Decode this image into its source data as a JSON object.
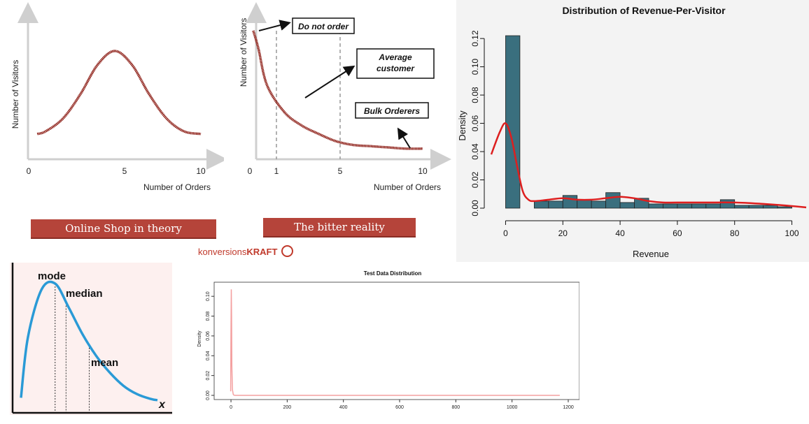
{
  "theory_chart": {
    "ylabel": "Number of Visitors",
    "xlabel": "Number of Orders",
    "ticks": [
      "0",
      "5",
      "10"
    ],
    "banner": "Online Shop in theory",
    "colors": {
      "curve": "#8b1a12",
      "banner": "#b5443a"
    }
  },
  "reality_chart": {
    "ylabel": "Number of Visitors",
    "xlabel": "Number of Orders",
    "ticks": [
      "0",
      "1",
      "5",
      "10"
    ],
    "annotations": {
      "do_not_order": "Do not order",
      "average_line1": "Average",
      "average_line2": "customer",
      "bulk": "Bulk Orderers"
    },
    "banner": "The bitter reality",
    "brand_light": "konversions",
    "brand_bold": "KRAFT"
  },
  "chart_data": [
    {
      "type": "line",
      "description_note": "",
      "x": [
        0.5,
        1,
        2,
        3,
        4,
        5,
        6,
        7,
        8,
        9,
        10
      ],
      "y": [
        0.1,
        0.13,
        0.27,
        0.53,
        0.85,
        1.0,
        0.85,
        0.53,
        0.27,
        0.13,
        0.1
      ],
      "xlabel": "Number of Orders",
      "ylabel": "Number of Visitors",
      "xticks": [
        0,
        5,
        10
      ]
    },
    {
      "type": "line",
      "x": [
        0.2,
        0.5,
        1,
        2,
        3,
        4,
        5,
        6,
        7,
        8,
        9,
        10
      ],
      "y": [
        1.0,
        0.85,
        0.55,
        0.33,
        0.22,
        0.15,
        0.09,
        0.06,
        0.05,
        0.04,
        0.03,
        0.03
      ],
      "xlabel": "Number of Orders",
      "ylabel": "Number of Visitors",
      "xticks": [
        0,
        1,
        5,
        10
      ],
      "reference_lines_x": [
        1,
        5
      ]
    },
    {
      "type": "bar",
      "title": "Distribution of Revenue-Per-Visitor",
      "xlabel": "Revenue",
      "ylabel": "Density",
      "xlim": [
        -5,
        105
      ],
      "ylim": [
        0,
        0.125
      ],
      "xticks": [
        0,
        20,
        40,
        60,
        80,
        100
      ],
      "yticks": [
        0.0,
        0.02,
        0.04,
        0.06,
        0.08,
        0.1,
        0.12
      ],
      "ytick_labels": [
        "0.00",
        "0.02",
        "0.04",
        "0.06",
        "0.08",
        "0.10",
        "0.12"
      ],
      "bin_edges": [
        0,
        5,
        10,
        15,
        20,
        25,
        30,
        35,
        40,
        45,
        50,
        55,
        60,
        65,
        70,
        75,
        80,
        85,
        90,
        95,
        100
      ],
      "values": [
        0.122,
        0.0,
        0.005,
        0.005,
        0.009,
        0.006,
        0.005,
        0.011,
        0.004,
        0.007,
        0.003,
        0.003,
        0.003,
        0.003,
        0.003,
        0.006,
        0.002,
        0.002,
        0.002,
        0.001
      ],
      "density_x": [
        -5,
        -2,
        0,
        2,
        4,
        6,
        8,
        10,
        15,
        20,
        25,
        30,
        35,
        40,
        45,
        50,
        55,
        60,
        70,
        80,
        90,
        100,
        105
      ],
      "density_y": [
        0.038,
        0.054,
        0.06,
        0.05,
        0.03,
        0.012,
        0.006,
        0.005,
        0.006,
        0.007,
        0.006,
        0.006,
        0.007,
        0.008,
        0.007,
        0.005,
        0.004,
        0.004,
        0.004,
        0.004,
        0.003,
        0.0015,
        0.0005
      ],
      "colors": {
        "bars": "#3a6f7e",
        "density": "#dd1f1f"
      }
    },
    {
      "type": "line",
      "labels": {
        "mode": "mode",
        "median": "median",
        "mean": "mean",
        "x": "x"
      },
      "x": [
        0,
        0.05,
        0.15,
        0.25,
        0.35,
        0.45,
        0.55,
        0.65,
        0.75,
        0.85,
        0.95,
        1.0
      ],
      "y": [
        0.05,
        0.55,
        0.95,
        1.0,
        0.8,
        0.58,
        0.4,
        0.26,
        0.15,
        0.08,
        0.04,
        0.03
      ],
      "markers_x": {
        "mode": 0.25,
        "median": 0.33,
        "mean": 0.5
      },
      "colors": {
        "curve": "#2a9ad6",
        "background": "#fdf0ef"
      }
    },
    {
      "type": "line",
      "title": "Test Data Distribution",
      "xlabel": "",
      "ylabel": "Density",
      "xlim": [
        -30,
        1210
      ],
      "ylim": [
        0,
        0.11
      ],
      "xticks": [
        0,
        200,
        400,
        600,
        800,
        1000,
        1200
      ],
      "yticks": [
        0.0,
        0.02,
        0.04,
        0.06,
        0.08,
        0.1
      ],
      "ytick_labels": [
        "0.00",
        "0.02",
        "0.04",
        "0.06",
        "0.08",
        "0.10"
      ],
      "x": [
        -1,
        0,
        1,
        2,
        3,
        5,
        8,
        10,
        15,
        1170
      ],
      "y": [
        0.004,
        0.06,
        0.107,
        0.08,
        0.03,
        0.006,
        0.001,
        0.0003,
        0.0,
        0.0
      ],
      "colors": {
        "line": "#f4a0a0"
      }
    }
  ]
}
